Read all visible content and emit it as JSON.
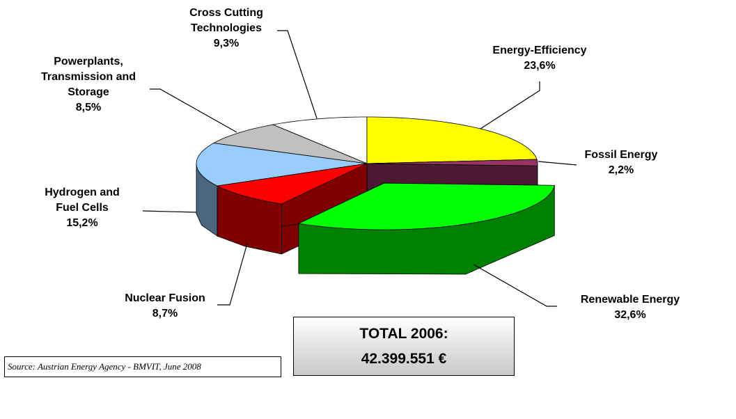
{
  "chart_data": {
    "type": "pie3d",
    "categories": [
      "Energy-Efficiency",
      "Fossil Energy",
      "Renewable Energy",
      "Nuclear Fusion",
      "Hydrogen and Fuel Cells",
      "Powerplants, Transmission and Storage",
      "Cross Cutting Technologies"
    ],
    "values": [
      23.6,
      2.2,
      32.6,
      8.7,
      15.2,
      8.5,
      9.3
    ],
    "value_labels": [
      "23,6%",
      "2,2%",
      "32,6%",
      "8,7%",
      "15,2%",
      "8,5%",
      "9,3%"
    ],
    "colors": [
      "#ffff00",
      "#993366",
      "#00ff00",
      "#ff0000",
      "#99ccff",
      "#c0c0c0",
      "#ffffff"
    ],
    "exploded": [
      false,
      false,
      true,
      false,
      false,
      false,
      false
    ],
    "annotations": {
      "total_label": "TOTAL 2006:",
      "total_value": "42.399.551 €",
      "source": "Source: Austrian Energy Agency - BMVIT, June 2008"
    }
  }
}
